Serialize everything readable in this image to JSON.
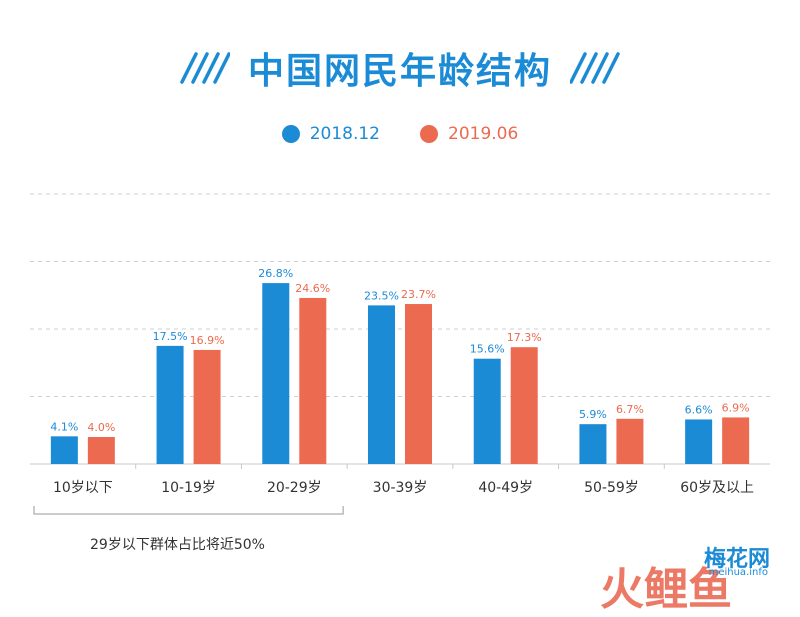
{
  "title": "中国网民年龄结构",
  "colors": {
    "blue": "#1b8bd6",
    "orange": "#ec6a4f",
    "grid": "#cfcfcf",
    "axis": "#c8c8c8"
  },
  "chart_data": {
    "type": "bar",
    "title": "中国网民年龄结构",
    "categories": [
      "10岁以下",
      "10-19岁",
      "20-29岁",
      "30-39岁",
      "40-49岁",
      "50-59岁",
      "60岁及以上"
    ],
    "series": [
      {
        "name": "2018.12",
        "color": "#1b8bd6",
        "values": [
          4.1,
          17.5,
          26.8,
          23.5,
          15.6,
          5.9,
          6.6
        ],
        "labels": [
          "4.1%",
          "17.5%",
          "26.8%",
          "23.5%",
          "15.6%",
          "5.9%",
          "6.6%"
        ]
      },
      {
        "name": "2019.06",
        "color": "#ec6a4f",
        "values": [
          4.0,
          16.9,
          24.6,
          23.7,
          17.3,
          6.7,
          6.9
        ],
        "labels": [
          "4.0%",
          "16.9%",
          "24.6%",
          "23.7%",
          "17.3%",
          "6.7%",
          "6.9%"
        ]
      }
    ],
    "ylim": [
      0,
      40
    ],
    "grid": true,
    "legend": "top-center"
  },
  "annotation": "29岁以下群体占比将近50%",
  "watermark": {
    "logo": "梅花网",
    "sub": "meihua.info",
    "big": "火鲤鱼"
  }
}
